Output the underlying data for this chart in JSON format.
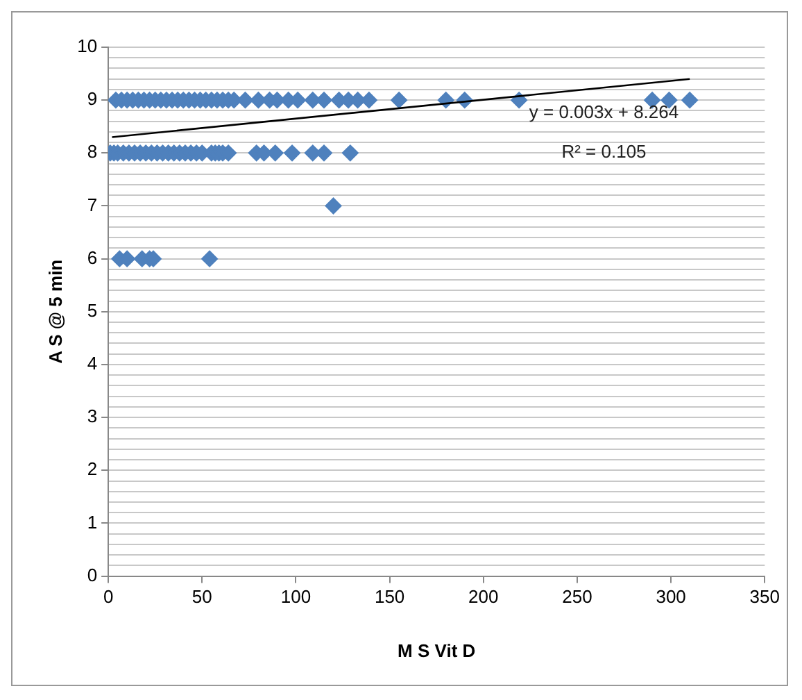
{
  "chart_data": {
    "type": "scatter",
    "xlabel": "M S Vit D",
    "ylabel": "A S @ 5 min",
    "xlim": [
      0,
      350
    ],
    "xticks": [
      0,
      50,
      100,
      150,
      200,
      250,
      300,
      350
    ],
    "ylim": [
      0,
      10
    ],
    "yticks": [
      0,
      {
        "value": 0.2,
        "label": null
      },
      {
        "value": 0.4,
        "label": null
      },
      {
        "value": 0.6,
        "label": null
      },
      {
        "value": 0.8,
        "label": null
      },
      1,
      {
        "value": 1.2,
        "label": null
      },
      {
        "value": 1.4,
        "label": null
      },
      {
        "value": 1.6,
        "label": null
      },
      {
        "value": 1.8,
        "label": null
      },
      2,
      {
        "value": 2.2,
        "label": null
      },
      {
        "value": 2.4,
        "label": null
      },
      {
        "value": 2.6,
        "label": null
      },
      {
        "value": 2.8,
        "label": null
      },
      3,
      {
        "value": 3.2,
        "label": null
      },
      {
        "value": 3.4,
        "label": null
      },
      {
        "value": 3.6,
        "label": null
      },
      {
        "value": 3.8,
        "label": null
      },
      4,
      {
        "value": 4.2,
        "label": null
      },
      {
        "value": 4.4,
        "label": null
      },
      {
        "value": 4.6,
        "label": null
      },
      {
        "value": 4.8,
        "label": null
      },
      5,
      {
        "value": 5.2,
        "label": null
      },
      {
        "value": 5.4,
        "label": null
      },
      {
        "value": 5.6,
        "label": null
      },
      {
        "value": 5.8,
        "label": null
      },
      6,
      {
        "value": 6.2,
        "label": null
      },
      {
        "value": 6.4,
        "label": null
      },
      {
        "value": 6.6,
        "label": null
      },
      {
        "value": 6.8,
        "label": null
      },
      7,
      {
        "value": 7.2,
        "label": null
      },
      {
        "value": 7.4,
        "label": null
      },
      {
        "value": 7.6,
        "label": null
      },
      {
        "value": 7.8,
        "label": null
      },
      8,
      {
        "value": 8.2,
        "label": null
      },
      {
        "value": 8.4,
        "label": null
      },
      {
        "value": 8.6,
        "label": null
      },
      {
        "value": 8.8,
        "label": null
      },
      9,
      {
        "value": 9.2,
        "label": null
      },
      {
        "value": 9.4,
        "label": null
      },
      {
        "value": 9.6,
        "label": null
      },
      {
        "value": 9.8,
        "label": null
      },
      10
    ],
    "grid": "y",
    "legend": false,
    "marker": "diamond",
    "series": [
      {
        "type": "scatter",
        "color": "#4f81bd",
        "x": [
          4,
          7,
          10,
          13,
          16,
          19,
          22,
          25,
          28,
          31,
          34,
          37,
          40,
          43,
          46,
          49,
          52,
          55,
          58,
          61,
          64,
          67,
          73,
          80,
          86,
          90,
          96,
          101,
          109,
          115,
          123,
          128,
          133,
          139,
          155,
          180,
          190,
          219,
          290,
          299,
          310,
          1,
          3,
          5,
          8,
          11,
          14,
          17,
          20,
          23,
          26,
          29,
          32,
          35,
          38,
          41,
          44,
          47,
          50,
          55,
          57,
          59,
          61,
          64,
          79,
          83,
          89,
          98,
          109,
          115,
          129,
          120,
          6,
          10,
          18,
          22,
          24,
          54
        ],
        "values": [
          9,
          9,
          9,
          9,
          9,
          9,
          9,
          9,
          9,
          9,
          9,
          9,
          9,
          9,
          9,
          9,
          9,
          9,
          9,
          9,
          9,
          9,
          9,
          9,
          9,
          9,
          9,
          9,
          9,
          9,
          9,
          9,
          9,
          9,
          9,
          9,
          9,
          9,
          9,
          9,
          9,
          8,
          8,
          8,
          8,
          8,
          8,
          8,
          8,
          8,
          8,
          8,
          8,
          8,
          8,
          8,
          8,
          8,
          8,
          8,
          8,
          8,
          8,
          8,
          8,
          8,
          8,
          8,
          8,
          8,
          8,
          7,
          6,
          6,
          6,
          6,
          6,
          6
        ]
      },
      {
        "type": "line",
        "color": "#000000",
        "marker": "none",
        "x": [
          2,
          310
        ],
        "values": [
          8.3,
          9.4
        ]
      }
    ],
    "annotations": [
      "y = 0.003x + 8.264",
      "R² = 0.105"
    ]
  }
}
